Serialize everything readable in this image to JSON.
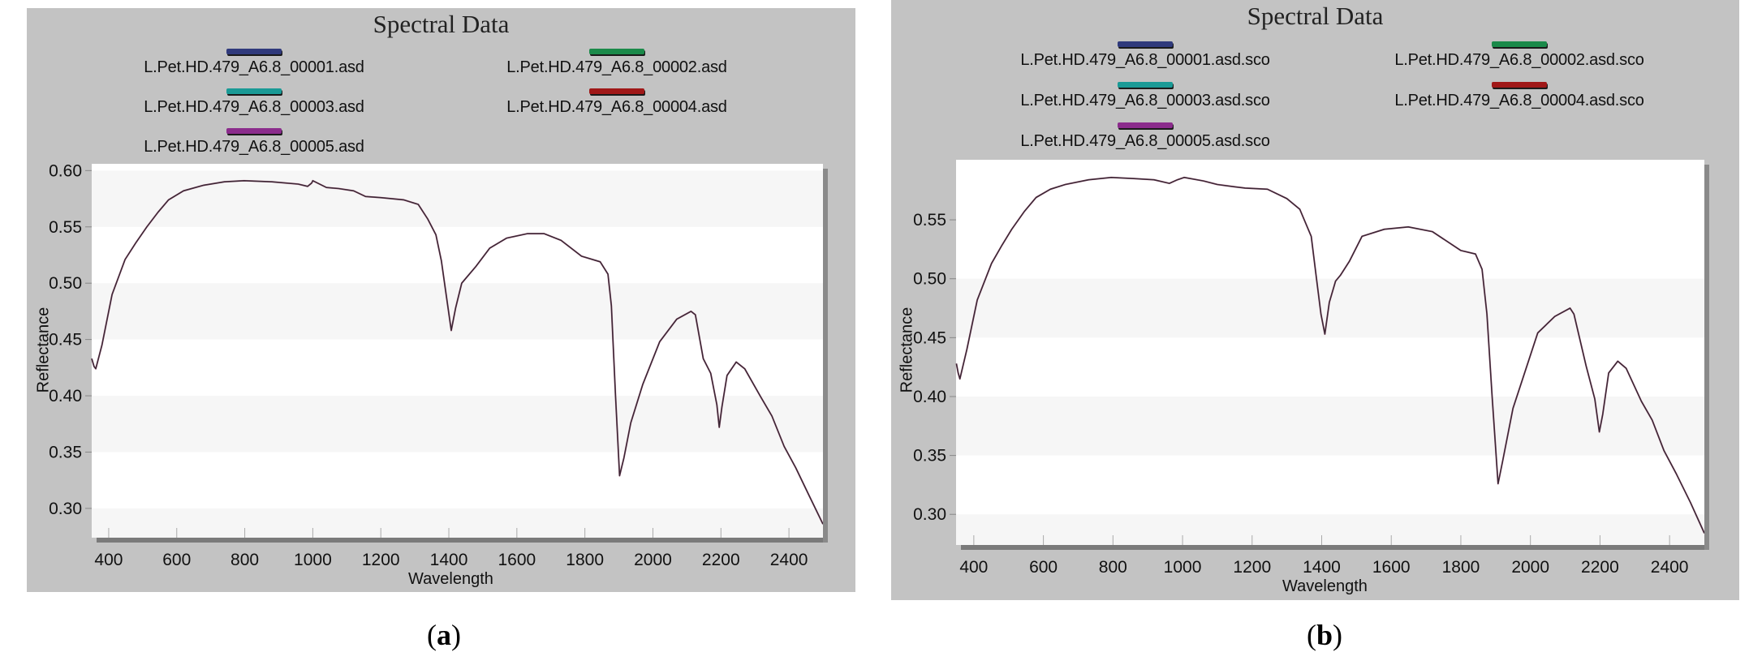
{
  "figure": {
    "captions": [
      "(a)",
      "(b)"
    ],
    "caption_letters": [
      "a",
      "b"
    ]
  },
  "panels": [
    {
      "id": "a",
      "title": "Spectral Data",
      "xlabel": "Wavelength",
      "ylabel": "Reflectance",
      "legend": [
        {
          "label": "L.Pet.HD.479_A6.8_00001.asd",
          "color": "#303a7c"
        },
        {
          "label": "L.Pet.HD.479_A6.8_00002.asd",
          "color": "#1b8a4a"
        },
        {
          "label": "L.Pet.HD.479_A6.8_00003.asd",
          "color": "#1a9a96"
        },
        {
          "label": "L.Pet.HD.479_A6.8_00004.asd",
          "color": "#a01818"
        },
        {
          "label": "L.Pet.HD.479_A6.8_00005.asd",
          "color": "#8b2c8c"
        }
      ],
      "xticks": [
        "400",
        "600",
        "800",
        "1000",
        "1200",
        "1400",
        "1600",
        "1800",
        "2000",
        "2200",
        "2400"
      ],
      "yticks": [
        "0.60",
        "0.55",
        "0.50",
        "0.45",
        "0.40",
        "0.35",
        "0.30"
      ]
    },
    {
      "id": "b",
      "title": "Spectral Data",
      "xlabel": "Wavelength",
      "ylabel": "Reflectance",
      "legend": [
        {
          "label": "L.Pet.HD.479_A6.8_00001.asd.sco",
          "color": "#303a7c"
        },
        {
          "label": "L.Pet.HD.479_A6.8_00002.asd.sco",
          "color": "#1b8a4a"
        },
        {
          "label": "L.Pet.HD.479_A6.8_00003.asd.sco",
          "color": "#1a9a96"
        },
        {
          "label": "L.Pet.HD.479_A6.8_00004.asd.sco",
          "color": "#a01818"
        },
        {
          "label": "L.Pet.HD.479_A6.8_00005.asd.sco",
          "color": "#8b2c8c"
        }
      ],
      "xticks": [
        "400",
        "600",
        "800",
        "1000",
        "1200",
        "1400",
        "1600",
        "1800",
        "2000",
        "2200",
        "2400"
      ],
      "yticks": [
        "0.55",
        "0.50",
        "0.45",
        "0.40",
        "0.35",
        "0.30"
      ]
    }
  ],
  "chart_data": [
    {
      "type": "line",
      "panel": "a",
      "title": "Spectral Data",
      "xlabel": "Wavelength",
      "ylabel": "Reflectance",
      "xlim": [
        350,
        2500
      ],
      "ylim": [
        0.274,
        0.606
      ],
      "xticks": [
        400,
        600,
        800,
        1000,
        1200,
        1400,
        1600,
        1800,
        2000,
        2200,
        2400
      ],
      "yticks": [
        0.3,
        0.35,
        0.4,
        0.45,
        0.5,
        0.55,
        0.6
      ],
      "grid": "horizontal bands",
      "legend_position": "top, two columns",
      "line_color": "#3a2634",
      "note": "Five overlapping spectra (00001-00005.asd) drawn nearly identical",
      "series": [
        {
          "name": "L.Pet.HD.479_A6.8_00001.asd"
        },
        {
          "name": "L.Pet.HD.479_A6.8_00002.asd"
        },
        {
          "name": "L.Pet.HD.479_A6.8_00003.asd"
        },
        {
          "name": "L.Pet.HD.479_A6.8_00004.asd"
        },
        {
          "name": "L.Pet.HD.479_A6.8_00005.asd"
        }
      ],
      "x": [
        350,
        357,
        362,
        380,
        410,
        448,
        480,
        512,
        545,
        576,
        620,
        679,
        740,
        798,
        880,
        957,
        985,
        997,
        1000,
        1040,
        1076,
        1120,
        1155,
        1200,
        1267,
        1310,
        1338,
        1362,
        1378,
        1392,
        1407,
        1420,
        1438,
        1452,
        1480,
        1520,
        1570,
        1631,
        1680,
        1730,
        1790,
        1845,
        1868,
        1878,
        1890,
        1902,
        1915,
        1935,
        1970,
        2020,
        2070,
        2112,
        2125,
        2148,
        2170,
        2188,
        2195,
        2203,
        2218,
        2245,
        2270,
        2317,
        2350,
        2386,
        2420,
        2460,
        2500
      ],
      "y": [
        0.433,
        0.426,
        0.424,
        0.445,
        0.49,
        0.521,
        0.536,
        0.55,
        0.563,
        0.574,
        0.582,
        0.587,
        0.59,
        0.591,
        0.59,
        0.588,
        0.586,
        0.589,
        0.591,
        0.585,
        0.584,
        0.582,
        0.577,
        0.576,
        0.574,
        0.57,
        0.557,
        0.543,
        0.52,
        0.49,
        0.458,
        0.478,
        0.5,
        0.505,
        0.515,
        0.531,
        0.54,
        0.544,
        0.544,
        0.538,
        0.524,
        0.519,
        0.508,
        0.48,
        0.4,
        0.329,
        0.345,
        0.376,
        0.41,
        0.448,
        0.468,
        0.475,
        0.472,
        0.433,
        0.42,
        0.392,
        0.372,
        0.39,
        0.418,
        0.43,
        0.424,
        0.399,
        0.382,
        0.355,
        0.336,
        0.311,
        0.286
      ]
    },
    {
      "type": "line",
      "panel": "b",
      "title": "Spectral Data",
      "xlabel": "Wavelength",
      "ylabel": "Reflectance",
      "xlim": [
        349,
        2500
      ],
      "ylim": [
        0.274,
        0.601
      ],
      "xticks": [
        400,
        600,
        800,
        1000,
        1200,
        1400,
        1600,
        1800,
        2000,
        2200,
        2400
      ],
      "yticks": [
        0.3,
        0.35,
        0.4,
        0.45,
        0.5,
        0.55
      ],
      "grid": "horizontal bands",
      "legend_position": "top, two columns",
      "line_color": "#3a2634",
      "note": "Five overlapping spectra (00001-00005.asd.sco) drawn nearly identical",
      "series": [
        {
          "name": "L.Pet.HD.479_A6.8_00001.asd.sco"
        },
        {
          "name": "L.Pet.HD.479_A6.8_00002.asd.sco"
        },
        {
          "name": "L.Pet.HD.479_A6.8_00003.asd.sco"
        },
        {
          "name": "L.Pet.HD.479_A6.8_00004.asd.sco"
        },
        {
          "name": "L.Pet.HD.479_A6.8_00005.asd.sco"
        }
      ],
      "x": [
        350,
        355,
        360,
        380,
        410,
        451,
        480,
        509,
        545,
        579,
        620,
        663,
        730,
        795,
        860,
        918,
        962,
        985,
        1005,
        1060,
        1100,
        1151,
        1180,
        1244,
        1300,
        1337,
        1370,
        1385,
        1398,
        1409,
        1422,
        1440,
        1454,
        1480,
        1516,
        1580,
        1649,
        1718,
        1800,
        1842,
        1861,
        1875,
        1890,
        1907,
        1920,
        1950,
        2021,
        2070,
        2114,
        2125,
        2160,
        2185,
        2198,
        2208,
        2225,
        2251,
        2275,
        2319,
        2350,
        2384,
        2420,
        2460,
        2500
      ],
      "y": [
        0.428,
        0.42,
        0.415,
        0.44,
        0.482,
        0.513,
        0.528,
        0.542,
        0.557,
        0.569,
        0.576,
        0.58,
        0.584,
        0.586,
        0.585,
        0.584,
        0.581,
        0.584,
        0.586,
        0.583,
        0.58,
        0.578,
        0.577,
        0.576,
        0.568,
        0.559,
        0.536,
        0.5,
        0.47,
        0.453,
        0.48,
        0.498,
        0.503,
        0.515,
        0.536,
        0.542,
        0.544,
        0.54,
        0.524,
        0.521,
        0.508,
        0.47,
        0.4,
        0.326,
        0.345,
        0.39,
        0.454,
        0.468,
        0.475,
        0.47,
        0.426,
        0.398,
        0.37,
        0.385,
        0.42,
        0.43,
        0.424,
        0.396,
        0.38,
        0.354,
        0.334,
        0.31,
        0.284
      ]
    }
  ]
}
